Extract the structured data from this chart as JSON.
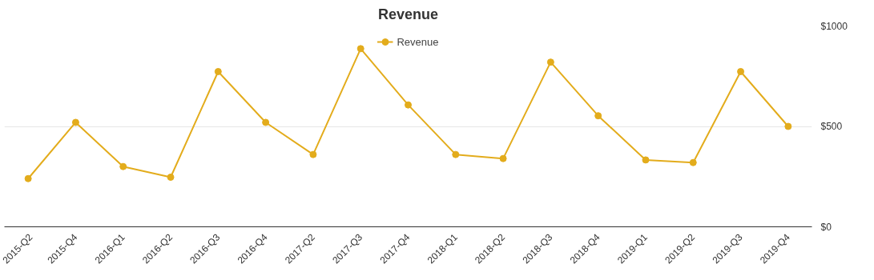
{
  "chart_data": {
    "type": "line",
    "title": "Revenue",
    "categories": [
      "2015-Q2",
      "2015-Q4",
      "2016-Q1",
      "2016-Q2",
      "2016-Q3",
      "2016-Q4",
      "2017-Q2",
      "2017-Q3",
      "2017-Q4",
      "2018-Q1",
      "2018-Q2",
      "2018-Q3",
      "2018-Q4",
      "2019-Q1",
      "2019-Q2",
      "2019-Q3",
      "2019-Q4"
    ],
    "series": [
      {
        "name": "Revenue",
        "color": "#e3ac1c",
        "values": [
          240,
          520,
          300,
          247,
          773,
          520,
          360,
          887,
          607,
          360,
          340,
          820,
          553,
          333,
          320,
          773,
          500
        ]
      }
    ],
    "ylim": [
      0,
      1000
    ],
    "yticks": [
      {
        "value": 0,
        "label": "$0"
      },
      {
        "value": 500,
        "label": "$500"
      },
      {
        "value": 1000,
        "label": "$1000"
      }
    ],
    "grid": "y",
    "legend": "top",
    "marker": "circle",
    "line_style": "solid"
  }
}
